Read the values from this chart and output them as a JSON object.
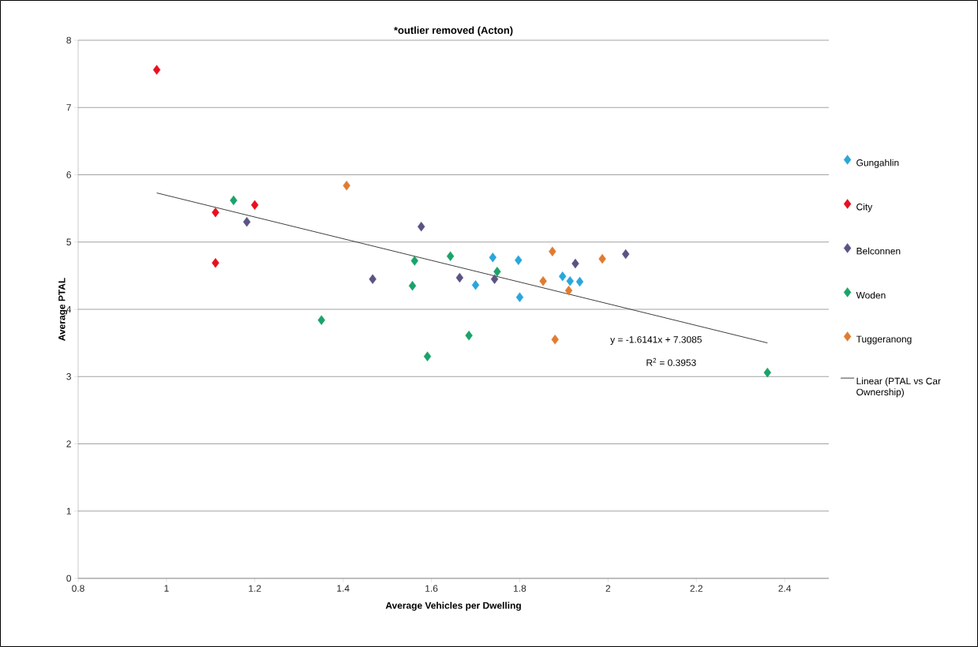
{
  "chart_data": {
    "type": "scatter",
    "title": "*outlier removed (Acton)",
    "xlabel": "Average Vehicles per Dwelling",
    "ylabel": "Average PTAL",
    "xlim": [
      0.8,
      2.5
    ],
    "ylim": [
      0,
      8
    ],
    "xticks": [
      0.8,
      1,
      1.2,
      1.4,
      1.6,
      1.8,
      2,
      2.2,
      2.4
    ],
    "yticks": [
      0,
      1,
      2,
      3,
      4,
      5,
      6,
      7,
      8
    ],
    "grid": "y",
    "legend": "right",
    "marker": "diamond",
    "annotations": [
      "y = -1.6141x + 7.3085",
      "R$^{2}$ = 0.3953"
    ],
    "series": [
      {
        "name": "Gungahlin",
        "color": "#2aa6dc",
        "x": [
          1.739,
          1.797,
          1.7,
          1.897,
          1.914,
          1.936,
          1.8
        ],
        "values": [
          4.77,
          4.73,
          4.36,
          4.49,
          4.42,
          4.41,
          4.18
        ]
      },
      {
        "name": "City",
        "color": "#e8101e",
        "x": [
          0.978,
          1.111,
          1.2,
          1.111
        ],
        "values": [
          7.56,
          5.44,
          5.55,
          4.69
        ]
      },
      {
        "name": "Belconnen",
        "color": "#5a5384",
        "x": [
          1.182,
          1.467,
          1.577,
          1.664,
          1.743,
          1.926,
          2.04
        ],
        "values": [
          5.3,
          4.45,
          5.23,
          4.47,
          4.45,
          4.68,
          4.82
        ]
      },
      {
        "name": "Woden",
        "color": "#1aa36a",
        "x": [
          1.152,
          1.351,
          1.562,
          1.643,
          1.749,
          1.557,
          1.685,
          1.591,
          2.361
        ],
        "values": [
          5.62,
          3.84,
          4.72,
          4.79,
          4.56,
          4.35,
          3.61,
          3.3,
          3.06
        ]
      },
      {
        "name": "Tuggeranong",
        "color": "#e07c30",
        "x": [
          1.408,
          1.874,
          1.987,
          1.853,
          1.911,
          1.88
        ],
        "values": [
          5.84,
          4.86,
          4.75,
          4.42,
          4.28,
          3.55
        ]
      },
      {
        "name": "Linear (PTAL vs Car Ownership)",
        "type": "line",
        "marker": "none",
        "color": "#404040",
        "x": [
          0.978,
          2.361
        ],
        "values": [
          5.73,
          3.5
        ]
      }
    ]
  }
}
